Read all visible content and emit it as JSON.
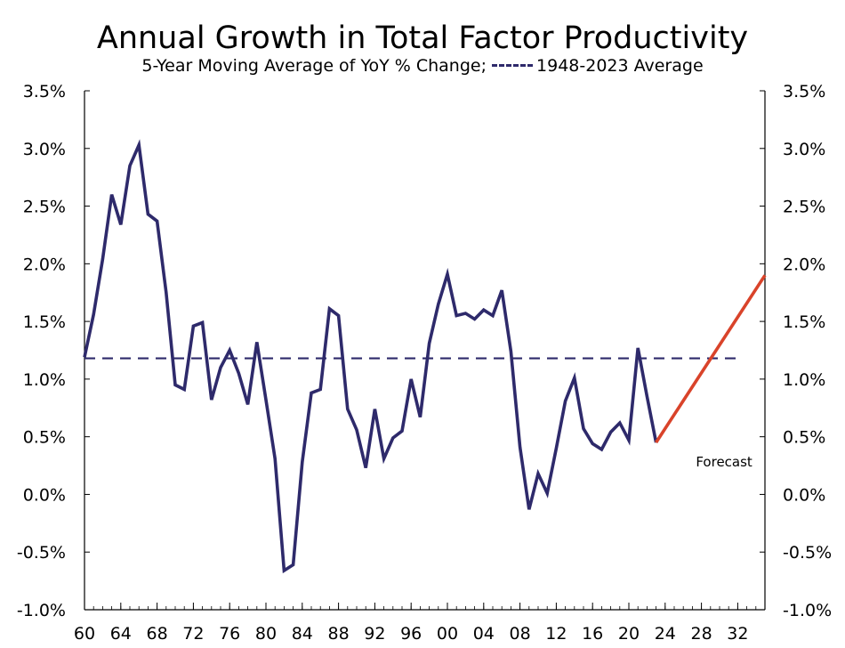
{
  "chart_data": {
    "type": "line",
    "title": "Annual Growth in Total Factor Productivity",
    "subtitle_prefix": "5-Year Moving Average of YoY % Change;",
    "subtitle_legend": "1948-2023 Average",
    "x_tick_labels": [
      "60",
      "64",
      "68",
      "72",
      "76",
      "80",
      "84",
      "88",
      "92",
      "96",
      "00",
      "04",
      "08",
      "12",
      "16",
      "20",
      "24",
      "28",
      "32"
    ],
    "x_tick_years": [
      1960,
      1964,
      1968,
      1972,
      1976,
      1980,
      1984,
      1988,
      1992,
      1996,
      2000,
      2004,
      2008,
      2012,
      2016,
      2020,
      2024,
      2028,
      2032
    ],
    "xlim": [
      1960,
      2035
    ],
    "y_tick_labels": [
      "3.5%",
      "3.0%",
      "2.5%",
      "2.0%",
      "1.5%",
      "1.0%",
      "0.5%",
      "0.0%",
      "-0.5%",
      "-1.0%"
    ],
    "y_tick_values": [
      3.5,
      3.0,
      2.5,
      2.0,
      1.5,
      1.0,
      0.5,
      0.0,
      -0.5,
      -1.0
    ],
    "ylim": [
      -1.0,
      3.5
    ],
    "ylabel": "",
    "xlabel": "",
    "grid": false,
    "series": [
      {
        "role": "history",
        "color": "#2e2a6b",
        "x": [
          1960,
          1961,
          1962,
          1963,
          1964,
          1965,
          1966,
          1967,
          1968,
          1969,
          1970,
          1971,
          1972,
          1973,
          1974,
          1975,
          1976,
          1977,
          1978,
          1979,
          1980,
          1981,
          1982,
          1983,
          1984,
          1985,
          1986,
          1987,
          1988,
          1989,
          1990,
          1991,
          1992,
          1993,
          1994,
          1995,
          1996,
          1997,
          1998,
          1999,
          2000,
          2001,
          2002,
          2003,
          2004,
          2005,
          2006,
          2007,
          2008,
          2009,
          2010,
          2011,
          2012,
          2013,
          2014,
          2015,
          2016,
          2017,
          2018,
          2019,
          2020,
          2021,
          2022,
          2023
        ],
        "values": [
          1.19,
          1.56,
          2.04,
          2.6,
          2.34,
          2.85,
          3.03,
          2.43,
          2.37,
          1.75,
          0.95,
          0.91,
          1.46,
          1.49,
          0.82,
          1.1,
          1.25,
          1.05,
          0.78,
          1.32,
          0.82,
          0.31,
          -0.66,
          -0.61,
          0.28,
          0.88,
          0.91,
          1.61,
          1.55,
          0.74,
          0.56,
          0.23,
          0.74,
          0.31,
          0.49,
          0.55,
          1.0,
          0.67,
          1.31,
          1.65,
          1.91,
          1.55,
          1.57,
          1.52,
          1.6,
          1.55,
          1.77,
          1.24,
          0.41,
          -0.13,
          0.18,
          0.01,
          0.4,
          0.81,
          1.01,
          0.57,
          0.44,
          0.39,
          0.54,
          0.62,
          0.47,
          1.27,
          0.85,
          0.45
        ]
      },
      {
        "role": "forecast",
        "color": "#d9432a",
        "x": [
          2023,
          2035
        ],
        "values": [
          0.45,
          1.9
        ]
      }
    ],
    "reference_lines": [
      {
        "label": "1948-2023 Average",
        "value": 1.18,
        "style": "dashed",
        "color": "#2e2a6b"
      }
    ],
    "annotations": [
      {
        "text": "Forecast",
        "x": 2030.5,
        "y": 0.28
      }
    ]
  }
}
